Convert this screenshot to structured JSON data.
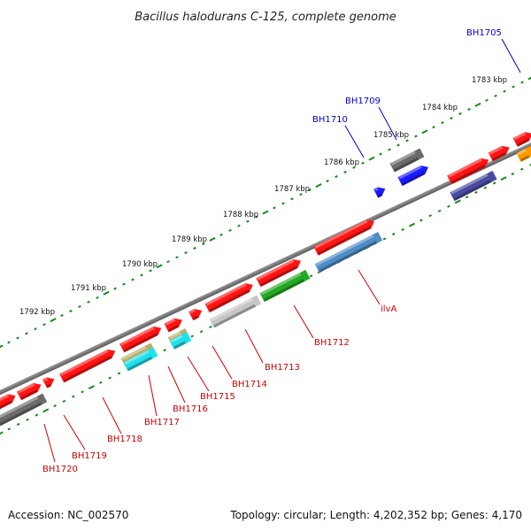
{
  "title": "Bacillus halodurans C-125, complete genome",
  "footer": {
    "accession": "Accession: NC_002570",
    "summary": "Topology: circular; Length: 4,202,352 bp; Genes: 4,170"
  },
  "colors": {
    "backbone": "#8a8a8a",
    "ticks": "#1a8a1a",
    "label_forward": "#0000cc",
    "label_reverse": "#cc0000",
    "gene_red": "#ff1414",
    "gene_gray": "#6b6b6b",
    "gene_blue": "#1a1aff",
    "gene_darkblue": "#4a4aa0",
    "gene_orange": "#ff9900",
    "gene_steelblue": "#4f8cc8",
    "gene_green": "#22aa22",
    "gene_silver": "#c6c6c6",
    "gene_khaki": "#b6ae6a",
    "gene_cyan": "#20e0ee"
  },
  "scale_labels": [
    "1783 kbp",
    "1784 kbp",
    "1785 kbp",
    "1786 kbp",
    "1787 kbp",
    "1788 kbp",
    "1789 kbp",
    "1790 kbp",
    "1791 kbp",
    "1792 kbp"
  ],
  "gene_labels_forward": [
    "BH1705",
    "BH1709",
    "BH1710"
  ],
  "gene_labels_reverse": [
    "ilvA",
    "BH1712",
    "BH1713",
    "BH1714",
    "BH1715",
    "BH1716",
    "BH1717",
    "BH1718",
    "BH1719",
    "BH1720"
  ]
}
